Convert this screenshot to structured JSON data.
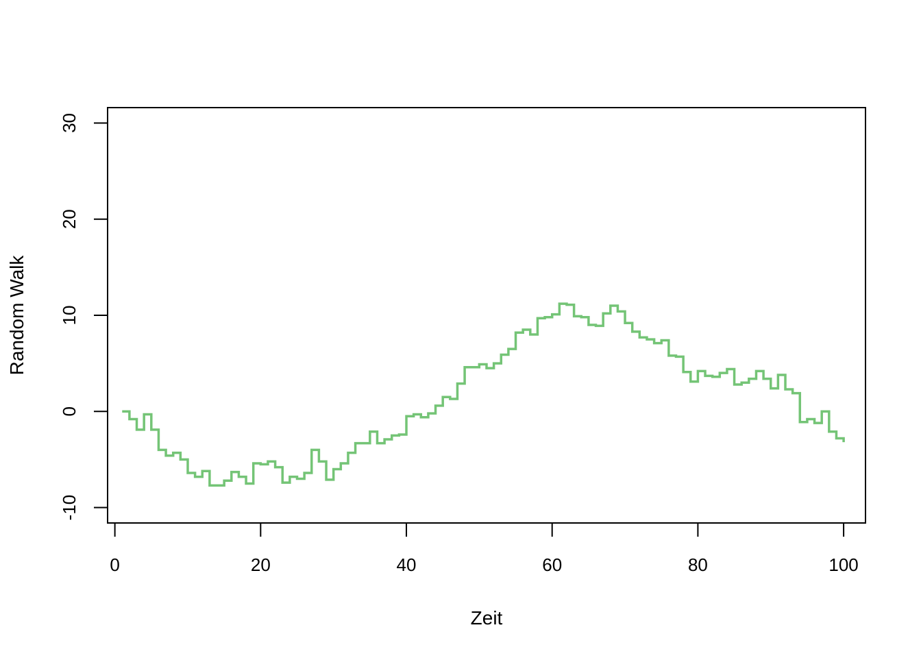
{
  "chart_data": {
    "type": "line",
    "step": true,
    "title": "",
    "xlabel": "Zeit",
    "ylabel": "Random Walk",
    "xlim": [
      -1,
      103
    ],
    "ylim": [
      -11.6,
      31.6
    ],
    "xticks": [
      0,
      20,
      40,
      60,
      80,
      100
    ],
    "yticks": [
      -10,
      0,
      10,
      20,
      30
    ],
    "xtick_labels": [
      "0",
      "20",
      "40",
      "60",
      "80",
      "100"
    ],
    "ytick_labels": [
      "-10",
      "0",
      "10",
      "20",
      "30"
    ],
    "grid": false,
    "legend": "none",
    "line_color": "#74C476",
    "series": [
      {
        "x": [
          1,
          2,
          3,
          4,
          5,
          6,
          7,
          8,
          9,
          10,
          11,
          12,
          13,
          14,
          15,
          16,
          17,
          18,
          19,
          20,
          21,
          22,
          23,
          24,
          25,
          26,
          27,
          28,
          29,
          30,
          31,
          32,
          33,
          34,
          35,
          36,
          37,
          38,
          39,
          40,
          41,
          42,
          43,
          44,
          45,
          46,
          47,
          48,
          49,
          50,
          51,
          52,
          53,
          54,
          55,
          56,
          57,
          58,
          59,
          60,
          61,
          62,
          63,
          64,
          65,
          66,
          67,
          68,
          69,
          70,
          71,
          72,
          73,
          74,
          75,
          76,
          77,
          78,
          79,
          80,
          81,
          82,
          83,
          84,
          85,
          86,
          87,
          88,
          89,
          90,
          91,
          92,
          93,
          94,
          95,
          96,
          97,
          98,
          99,
          100
        ],
        "values": [
          0.0,
          -0.8,
          -1.9,
          -0.3,
          -1.9,
          -4.0,
          -4.6,
          -4.3,
          -5.0,
          -6.4,
          -6.8,
          -6.2,
          -7.7,
          -7.7,
          -7.2,
          -6.3,
          -6.8,
          -7.5,
          -5.4,
          -5.5,
          -5.2,
          -5.8,
          -7.4,
          -6.8,
          -7.0,
          -6.4,
          -4.0,
          -5.2,
          -7.1,
          -6.0,
          -5.4,
          -4.3,
          -3.3,
          -3.3,
          -2.1,
          -3.3,
          -2.9,
          -2.5,
          -2.4,
          -0.5,
          -0.3,
          -0.6,
          -0.2,
          0.6,
          1.5,
          1.3,
          2.9,
          4.6,
          4.6,
          4.9,
          4.5,
          5.0,
          5.9,
          6.5,
          8.2,
          8.5,
          8.0,
          9.7,
          9.8,
          10.1,
          11.2,
          11.1,
          9.9,
          9.8,
          9.0,
          8.9,
          10.2,
          11.0,
          10.4,
          9.2,
          8.3,
          7.7,
          7.5,
          7.1,
          7.4,
          5.8,
          5.7,
          4.1,
          3.1,
          4.2,
          3.7,
          3.6,
          4.0,
          4.4,
          2.8,
          3.0,
          3.4,
          4.2,
          3.4,
          2.4,
          3.8,
          2.3,
          1.9,
          -1.1,
          -0.8,
          -1.2,
          0.0,
          -2.1,
          -2.8,
          -3.2
        ]
      }
    ]
  }
}
